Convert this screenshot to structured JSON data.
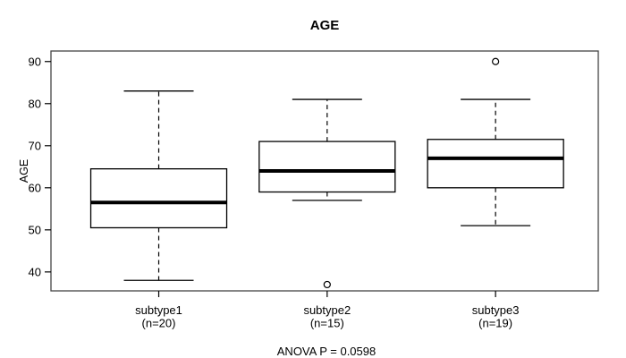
{
  "chart_data": {
    "type": "boxplot",
    "title": "AGE",
    "ylabel": "AGE",
    "xlabel": "",
    "ylim": [
      35.5,
      92.5
    ],
    "yticks": [
      40,
      50,
      60,
      70,
      80,
      90
    ],
    "grid": false,
    "legend": "none",
    "annotation": "ANOVA P = 0.0598",
    "groups": [
      {
        "label": "subtype1",
        "sublabel": "(n=20)",
        "n": 20,
        "whisker_low": 38,
        "q1": 50.5,
        "median": 56.5,
        "q3": 64.5,
        "whisker_high": 83,
        "outliers": []
      },
      {
        "label": "subtype2",
        "sublabel": "(n=15)",
        "n": 15,
        "whisker_low": 57,
        "q1": 59,
        "median": 64,
        "q3": 71,
        "whisker_high": 81,
        "outliers": [
          37
        ]
      },
      {
        "label": "subtype3",
        "sublabel": "(n=19)",
        "n": 19,
        "whisker_low": 51,
        "q1": 60,
        "median": 67,
        "q3": 71.5,
        "whisker_high": 81,
        "outliers": [
          90
        ]
      }
    ],
    "colors": {
      "background": "#ffffff",
      "line": "#000000",
      "frame": "#444444",
      "box_fill": "#ffffff"
    }
  }
}
